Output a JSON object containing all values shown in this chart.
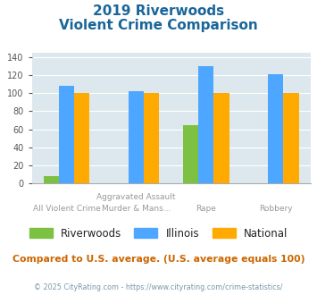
{
  "title_line1": "2019 Riverwoods",
  "title_line2": "Violent Crime Comparison",
  "top_labels": [
    "",
    "Aggravated Assault",
    "",
    ""
  ],
  "bot_labels": [
    "All Violent Crime",
    "Murder & Mans...",
    "Rape",
    "Robbery"
  ],
  "series": {
    "Riverwoods": [
      8,
      0,
      65,
      0
    ],
    "Illinois": [
      108,
      102,
      130,
      121
    ],
    "National": [
      100,
      100,
      100,
      100
    ]
  },
  "colors": {
    "Riverwoods": "#7dc142",
    "Illinois": "#4da6ff",
    "National": "#ffaa00"
  },
  "ylim": [
    0,
    145
  ],
  "yticks": [
    0,
    20,
    40,
    60,
    80,
    100,
    120,
    140
  ],
  "plot_background": "#dde8ee",
  "title_color": "#1a6699",
  "footer_note": "Compared to U.S. average. (U.S. average equals 100)",
  "copyright": "© 2025 CityRating.com - https://www.cityrating.com/crime-statistics/",
  "footer_color": "#cc6600",
  "copyright_color": "#7799aa"
}
